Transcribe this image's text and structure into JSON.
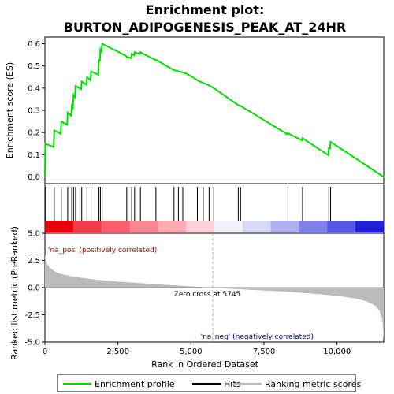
{
  "chart_data": {
    "type": "line",
    "title_line1": "Enrichment plot:",
    "title_line2": "BURTON_ADIPOGENESIS_PEAK_AT_24HR",
    "es_ylabel": "Enrichment score (ES)",
    "rank_ylabel": "Ranked list metric (PreRanked)",
    "xlabel": "Rank in Ordered Dataset",
    "xlim": [
      0,
      11600
    ],
    "es_ylim": [
      -0.03,
      0.63
    ],
    "rank_ylim": [
      -5.0,
      5.0
    ],
    "x_ticks": [
      {
        "value": 0,
        "label": "0"
      },
      {
        "value": 2500,
        "label": "2,500"
      },
      {
        "value": 5000,
        "label": "5,000"
      },
      {
        "value": 7500,
        "label": "7,500"
      },
      {
        "value": 10000,
        "label": "10,000"
      }
    ],
    "es_ticks": [
      {
        "value": 0.0,
        "label": "0.0"
      },
      {
        "value": 0.1,
        "label": "0.1"
      },
      {
        "value": 0.2,
        "label": "0.2"
      },
      {
        "value": 0.3,
        "label": "0.3"
      },
      {
        "value": 0.4,
        "label": "0.4"
      },
      {
        "value": 0.5,
        "label": "0.5"
      },
      {
        "value": 0.6,
        "label": "0.6"
      }
    ],
    "rank_ticks": [
      {
        "value": 5.0,
        "label": "5.0"
      },
      {
        "value": 2.5,
        "label": "2.5"
      },
      {
        "value": 0.0,
        "label": "0.0"
      },
      {
        "value": -2.5,
        "label": "-2.5"
      },
      {
        "value": -5.0,
        "label": "-5.0"
      }
    ],
    "enrichment_profile": {
      "x": [
        0,
        10,
        300,
        320,
        540,
        560,
        760,
        780,
        900,
        920,
        960,
        980,
        1030,
        1050,
        1240,
        1260,
        1420,
        1440,
        1560,
        1580,
        1830,
        1850,
        1880,
        1900,
        1940,
        1960,
        2780,
        2800,
        2950,
        2970,
        3050,
        3070,
        3250,
        3270,
        3780,
        3800,
        4400,
        4420,
        4550,
        4570,
        4700,
        4720,
        4850,
        5200,
        5220,
        5400,
        5420,
        5600,
        5620,
        5780,
        6600,
        6620,
        6700,
        8300,
        8320,
        8800,
        8820,
        9700,
        9720,
        9760,
        9780,
        11600
      ],
      "y": [
        0.0,
        0.15,
        0.135,
        0.21,
        0.195,
        0.25,
        0.235,
        0.29,
        0.275,
        0.32,
        0.31,
        0.37,
        0.36,
        0.41,
        0.395,
        0.43,
        0.415,
        0.45,
        0.435,
        0.475,
        0.46,
        0.53,
        0.52,
        0.575,
        0.565,
        0.6,
        0.545,
        0.54,
        0.535,
        0.555,
        0.548,
        0.562,
        0.553,
        0.562,
        0.527,
        0.528,
        0.482,
        0.48,
        0.478,
        0.475,
        0.472,
        0.47,
        0.465,
        0.438,
        0.435,
        0.425,
        0.423,
        0.414,
        0.413,
        0.4,
        0.325,
        0.323,
        0.32,
        0.192,
        0.197,
        0.165,
        0.175,
        0.098,
        0.13,
        0.128,
        0.158,
        0.0
      ]
    },
    "hits": [
      10,
      320,
      560,
      780,
      920,
      980,
      1050,
      1260,
      1440,
      1580,
      1850,
      1900,
      1960,
      2800,
      2970,
      3070,
      3270,
      3800,
      4420,
      4570,
      4720,
      5220,
      5420,
      5620,
      5780,
      6620,
      6700,
      8320,
      8820,
      9720,
      9780
    ],
    "zero_cross": {
      "value": 5745,
      "label": "Zero cross at 5745"
    },
    "ranked_metric": {
      "x": [
        0,
        50,
        150,
        300,
        500,
        800,
        1200,
        1800,
        2500,
        3500,
        4500,
        5200,
        5745,
        6500,
        7500,
        8500,
        9300,
        10000,
        10600,
        11000,
        11300,
        11450,
        11550,
        11600
      ],
      "y": [
        3.0,
        2.3,
        1.9,
        1.55,
        1.3,
        1.1,
        0.92,
        0.72,
        0.55,
        0.37,
        0.2,
        0.08,
        0.0,
        -0.12,
        -0.26,
        -0.42,
        -0.58,
        -0.75,
        -0.98,
        -1.25,
        -1.65,
        -2.1,
        -2.9,
        -4.8
      ]
    },
    "pos_label": "'na_pos' (positively correlated)",
    "neg_label": "'na_neg' (negatively correlated)",
    "legend": [
      {
        "label": "Enrichment profile",
        "color": "#00dd00"
      },
      {
        "label": "Hits",
        "color": "#000000"
      },
      {
        "label": "Ranking metric scores",
        "color": "#bbbbbb"
      }
    ],
    "colors": {
      "profile": "#00dd00",
      "hits": "#000000",
      "metric_fill": "#bbbbbb",
      "pos_text": "#cc0000",
      "neg_text": "#0000cc",
      "zero_line": "#aaaaaa"
    },
    "heat_bar_colors": [
      "#e8000b",
      "#f23a48",
      "#f7606c",
      "#f98590",
      "#fbaab2",
      "#fdd0d5",
      "#f0f0fa",
      "#d8d8f5",
      "#b0b0f0",
      "#8080ec",
      "#5858e6",
      "#2020d8"
    ]
  }
}
